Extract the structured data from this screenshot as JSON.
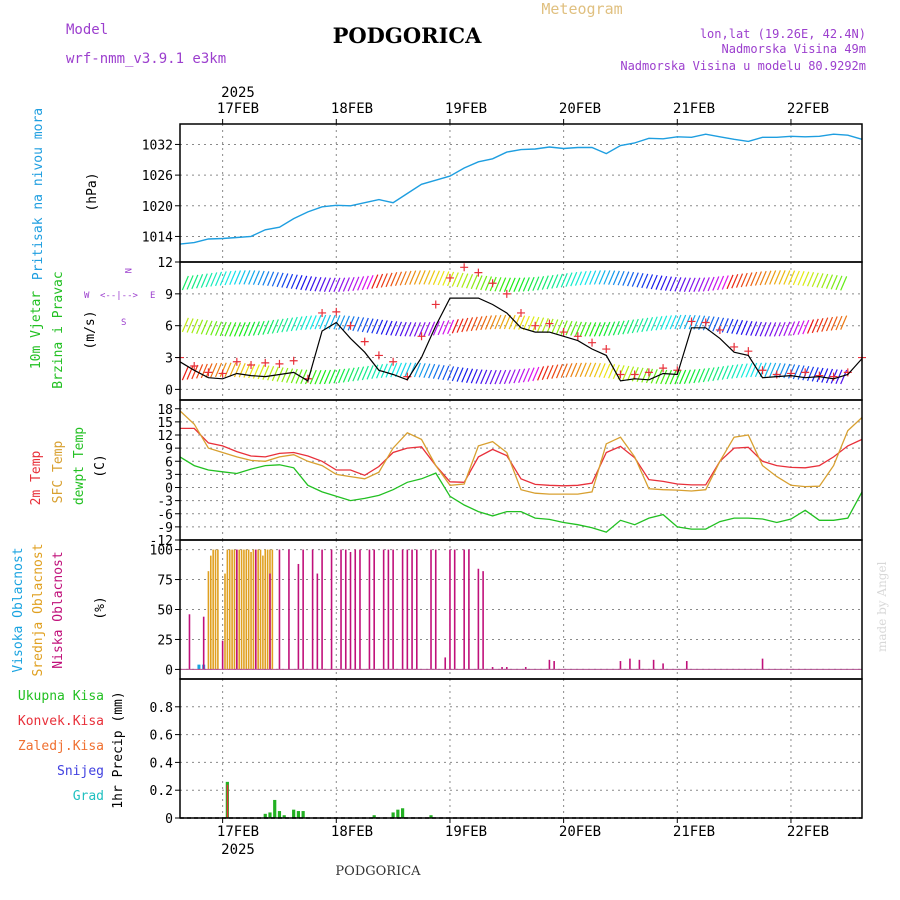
{
  "header": {
    "model_label": "Model",
    "model_name": "wrf-nmm_v3.9.1 e3km",
    "title": "PODGORICA",
    "subtitle": "Meteogram",
    "lonlat": "lon,lat (19.26E, 42.4N)",
    "altitude": "Nadmorska Visina 49m",
    "model_altitude": "Nadmorska Visina u modelu 80.9292m",
    "credit": "made by Angel",
    "footer": "PODGORICA"
  },
  "colors": {
    "pressure": "#1e9ee0",
    "purple": "#9c3fce",
    "wind_speed": "#000000",
    "wind_gust": "#e8303a",
    "t2m": "#e8303a",
    "sfc": "#d8a030",
    "dewpt": "#22c022",
    "high_cloud": "#19a3e0",
    "mid_cloud": "#e0a020",
    "low_cloud": "#c0107a",
    "rain": "#22b022",
    "title": "#000000"
  },
  "axes": {
    "year_label": "2025",
    "days": [
      "17FEB",
      "18FEB",
      "19FEB",
      "20FEB",
      "21FEB",
      "22FEB"
    ],
    "day_offsets_h": [
      9,
      33,
      57,
      81,
      105,
      129
    ],
    "x_range_h": [
      0,
      144
    ],
    "wind_dir_legend": {
      "n": "N",
      "w": "W",
      "e": "E",
      "s": "S"
    }
  },
  "chart_data": [
    {
      "type": "line",
      "id": "pressure",
      "title": "Pritisak na nivou mora",
      "ylabel": "(hPa)",
      "ylim": [
        1009,
        1036
      ],
      "ticks": [
        1014,
        1020,
        1026,
        1032
      ],
      "x": [
        0,
        3,
        6,
        9,
        12,
        15,
        18,
        21,
        24,
        27,
        30,
        33,
        36,
        39,
        42,
        45,
        48,
        51,
        54,
        57,
        60,
        63,
        66,
        69,
        72,
        75,
        78,
        81,
        84,
        87,
        90,
        93,
        96,
        99,
        102,
        105,
        108,
        111,
        114,
        117,
        120,
        123,
        126,
        129,
        132,
        135,
        138,
        141,
        144
      ],
      "values": [
        1012.5,
        1012.8,
        1013.5,
        1013.6,
        1013.8,
        1014.0,
        1015.3,
        1015.8,
        1017.5,
        1018.8,
        1019.8,
        1020.1,
        1020.0,
        1020.6,
        1021.2,
        1020.6,
        1022.4,
        1024.2,
        1025.0,
        1025.8,
        1027.4,
        1028.6,
        1029.2,
        1030.5,
        1031.0,
        1031.1,
        1031.5,
        1031.2,
        1031.4,
        1031.4,
        1030.2,
        1031.8,
        1032.3,
        1033.2,
        1033.1,
        1033.5,
        1033.4,
        1034.0,
        1033.5,
        1033.0,
        1032.6,
        1033.4,
        1033.4,
        1033.6,
        1033.5,
        1033.6,
        1034.0,
        1033.8,
        1033.0
      ]
    },
    {
      "type": "line",
      "id": "wind",
      "title": "10m Vjetar Brzina i Pravac",
      "ylabel": "(m/s)",
      "ylim": [
        -1,
        12
      ],
      "ticks": [
        0,
        3,
        6,
        9,
        12
      ],
      "x": [
        0,
        3,
        6,
        9,
        12,
        15,
        18,
        21,
        24,
        27,
        30,
        33,
        36,
        39,
        42,
        45,
        48,
        51,
        54,
        57,
        60,
        63,
        66,
        69,
        72,
        75,
        78,
        81,
        84,
        87,
        90,
        93,
        96,
        99,
        102,
        105,
        108,
        111,
        114,
        117,
        120,
        123,
        126,
        129,
        132,
        135,
        138,
        141,
        144
      ],
      "series": [
        {
          "name": "speed",
          "values": [
            2.6,
            1.8,
            1.1,
            1.0,
            1.5,
            1.3,
            1.2,
            1.4,
            1.6,
            0.8,
            5.5,
            6.3,
            4.8,
            3.5,
            1.8,
            1.4,
            0.9,
            3.0,
            6.0,
            8.6,
            8.6,
            8.6,
            8.0,
            7.2,
            5.8,
            5.4,
            5.4,
            5.0,
            4.6,
            3.8,
            3.2,
            0.8,
            1.0,
            0.9,
            1.5,
            1.4,
            5.8,
            5.8,
            4.8,
            3.5,
            3.2,
            1.1,
            1.2,
            1.3,
            1.1,
            1.2,
            1.0,
            1.4,
            2.9
          ]
        },
        {
          "name": "gust",
          "values": [
            3.0,
            2.2,
            1.6,
            1.5,
            2.6,
            2.3,
            2.5,
            2.4,
            2.7,
            1.0,
            7.2,
            7.3,
            6.0,
            4.5,
            3.2,
            2.6,
            1.2,
            5.0,
            8.0,
            10.5,
            11.5,
            11.0,
            10.0,
            9.0,
            7.2,
            6.0,
            6.2,
            5.4,
            5.0,
            4.4,
            3.8,
            1.4,
            1.4,
            1.6,
            2.0,
            1.8,
            6.4,
            6.3,
            5.6,
            4.0,
            3.6,
            1.8,
            1.4,
            1.5,
            1.6,
            1.3,
            1.2,
            1.6,
            3.0
          ]
        }
      ],
      "band_centers": [
        1.5,
        6.0,
        10.2
      ]
    },
    {
      "type": "line",
      "id": "temperature",
      "title": "2m Temp / SFC Temp / dewpt Temp",
      "ylabel": "(C)",
      "ylim": [
        -12,
        20
      ],
      "ticks": [
        -12,
        -9,
        -6,
        -3,
        0,
        3,
        6,
        9,
        12,
        15,
        18
      ],
      "x": [
        0,
        3,
        6,
        9,
        12,
        15,
        18,
        21,
        24,
        27,
        30,
        33,
        36,
        39,
        42,
        45,
        48,
        51,
        54,
        57,
        60,
        63,
        66,
        69,
        72,
        75,
        78,
        81,
        84,
        87,
        90,
        93,
        96,
        99,
        102,
        105,
        108,
        111,
        114,
        117,
        120,
        123,
        126,
        129,
        132,
        135,
        138,
        141,
        144
      ],
      "series": [
        {
          "name": "2m Temp",
          "values": [
            13.5,
            13.5,
            10.2,
            9.5,
            8.2,
            7.2,
            7.0,
            7.8,
            8.0,
            7.2,
            6.0,
            4.0,
            4.0,
            2.8,
            4.8,
            8.0,
            9.0,
            9.3,
            5.0,
            1.3,
            1.2,
            7.0,
            8.7,
            7.3,
            2.0,
            0.7,
            0.5,
            0.4,
            0.5,
            1.0,
            8.0,
            9.4,
            6.8,
            1.8,
            1.4,
            0.8,
            0.6,
            0.6,
            6.0,
            9.0,
            9.2,
            6.0,
            5.0,
            4.6,
            4.5,
            5.0,
            7.0,
            9.5,
            11.0
          ]
        },
        {
          "name": "SFC Temp",
          "values": [
            17.5,
            14.5,
            9.0,
            8.0,
            7.0,
            6.2,
            6.0,
            7.0,
            7.5,
            6.0,
            5.0,
            3.0,
            2.5,
            2.0,
            3.5,
            9.0,
            12.5,
            11.0,
            5.0,
            0.5,
            0.8,
            9.5,
            10.5,
            8.0,
            -0.5,
            -1.3,
            -1.5,
            -1.5,
            -1.5,
            -1.0,
            10.0,
            11.5,
            7.0,
            -0.3,
            -0.5,
            -0.6,
            -0.8,
            -0.5,
            6.0,
            11.5,
            12.0,
            5.0,
            2.5,
            0.5,
            0.2,
            0.3,
            5.0,
            13.0,
            16.0
          ]
        },
        {
          "name": "dewpt Temp",
          "values": [
            7.0,
            5.0,
            4.0,
            3.6,
            3.2,
            4.2,
            5.0,
            5.2,
            4.5,
            0.5,
            -1.0,
            -2.0,
            -3.0,
            -2.5,
            -1.8,
            -0.5,
            1.2,
            2.0,
            3.3,
            -2.0,
            -4.0,
            -5.5,
            -6.5,
            -5.5,
            -5.5,
            -7.0,
            -7.3,
            -8.0,
            -8.5,
            -9.2,
            -10.2,
            -7.5,
            -8.5,
            -7.0,
            -6.2,
            -9.0,
            -9.5,
            -9.5,
            -7.8,
            -7.0,
            -7.0,
            -7.2,
            -8.0,
            -7.2,
            -5.2,
            -7.5,
            -7.5,
            -7.0,
            -1.0
          ]
        }
      ]
    },
    {
      "type": "bar",
      "id": "cloud",
      "title": "Visoka / Srednja / Niska Oblacnost",
      "ylabel": "(%)",
      "ylim": [
        -8,
        108
      ],
      "ticks": [
        0,
        25,
        50,
        75,
        100
      ],
      "series": [
        {
          "name": "Visoka Oblacnost",
          "x": [
            4,
            5
          ],
          "values": [
            4,
            4
          ]
        },
        {
          "name": "Srednja Oblacnost",
          "x": [
            6,
            6.5,
            7,
            7.5,
            8,
            9.5,
            10,
            10.5,
            11,
            11.5,
            12,
            12.5,
            13,
            13.5,
            14,
            14.5,
            15,
            15.5,
            16,
            16.5,
            17,
            17.5,
            18,
            18.5,
            19,
            19.5
          ],
          "values": [
            82,
            95,
            100,
            100,
            100,
            80,
            100,
            100,
            100,
            100,
            100,
            100,
            100,
            100,
            100,
            100,
            98,
            100,
            100,
            100,
            100,
            95,
            100,
            100,
            100,
            100
          ]
        },
        {
          "name": "Niska Oblacnost",
          "x": [
            2,
            5,
            9,
            12,
            16,
            19,
            21,
            23,
            25,
            26,
            28,
            29,
            30,
            32,
            34,
            35,
            36,
            37,
            38,
            40,
            41,
            43,
            44,
            45,
            47,
            48,
            49,
            50,
            53,
            54,
            56,
            57,
            58,
            60,
            61,
            63,
            64,
            66,
            68,
            69,
            73,
            78,
            79,
            93,
            95,
            97,
            100,
            102,
            107,
            123
          ],
          "values": [
            46,
            44,
            24,
            100,
            100,
            80,
            100,
            100,
            88,
            100,
            100,
            80,
            100,
            100,
            100,
            100,
            98,
            100,
            100,
            100,
            100,
            100,
            100,
            100,
            100,
            100,
            100,
            100,
            100,
            100,
            10,
            100,
            100,
            100,
            100,
            84,
            82,
            2,
            2,
            2,
            2,
            8,
            7,
            7,
            9,
            8,
            8,
            5,
            7,
            9
          ]
        }
      ]
    },
    {
      "type": "bar",
      "id": "precip",
      "title": "Ukupna Kisa / Konvek.Kisa / Zaledj.Kisa / Snijeg / Grad",
      "ylabel": "1hr Precip (mm)",
      "ylim": [
        0,
        1.0
      ],
      "ticks": [
        0,
        0.2,
        0.4,
        0.6,
        0.8
      ],
      "series": [
        {
          "name": "Ukupna Kisa",
          "x": [
            10,
            18,
            19,
            20,
            21,
            22,
            24,
            25,
            26,
            41,
            45,
            46,
            47,
            53
          ],
          "values": [
            0.26,
            0.03,
            0.04,
            0.13,
            0.05,
            0.02,
            0.06,
            0.05,
            0.05,
            0.02,
            0.04,
            0.06,
            0.07,
            0.02
          ]
        },
        {
          "name": "Konvek.Kisa",
          "x": [
            10
          ],
          "values": [
            0.24
          ]
        }
      ],
      "legend": [
        "Ukupna Kisa",
        "Konvek.Kisa",
        "Zaledj.Kisa",
        "Snijeg",
        "Grad"
      ]
    }
  ]
}
